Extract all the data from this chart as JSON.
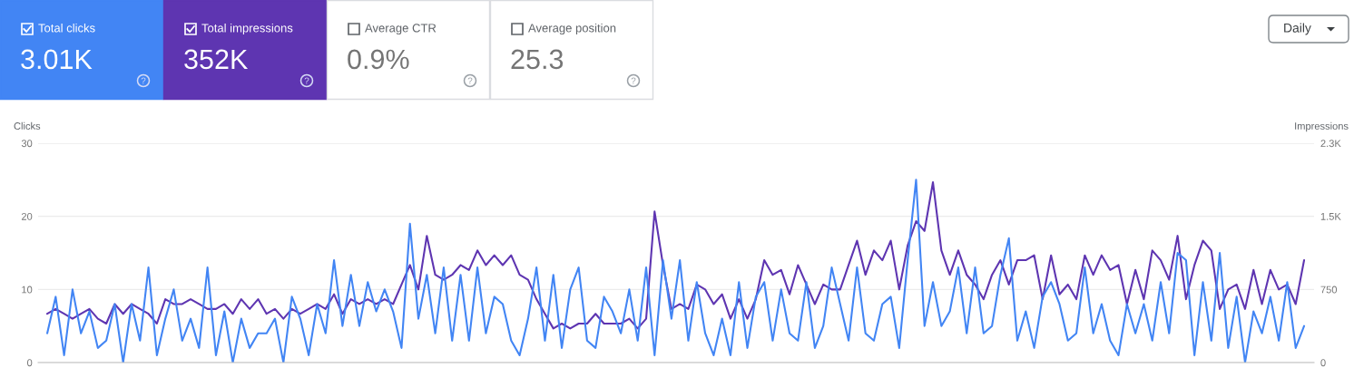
{
  "chart_data": [
    {
      "type": "other",
      "categories": [
        "Total clicks",
        "Total impressions",
        "Average CTR",
        "Average position"
      ],
      "value_labels": [
        "3.01K",
        "352K",
        "0.9%",
        "25.3"
      ],
      "colors": [
        "#4285f4",
        "#5e35b1",
        null,
        null
      ],
      "annotations": [
        "Daily"
      ]
    },
    {
      "type": "line",
      "categories": [
        null,
        null,
        null,
        null,
        null,
        null,
        null,
        null,
        null,
        null,
        null,
        null,
        null,
        null,
        null,
        null,
        null,
        null,
        null,
        null,
        null,
        null,
        null,
        null,
        null,
        null,
        null,
        null,
        null,
        null,
        null,
        null,
        null,
        null,
        null,
        null,
        null,
        null,
        null,
        null,
        null,
        null,
        null,
        null,
        null,
        null,
        null,
        null,
        null,
        null,
        null,
        null,
        null,
        null,
        null,
        null,
        null,
        null,
        null,
        null,
        null,
        null,
        null,
        null,
        null,
        null,
        null,
        null,
        null,
        null,
        null,
        null,
        null,
        null,
        null,
        null,
        null,
        null,
        null,
        null,
        null,
        null,
        null,
        null,
        null,
        null,
        null,
        null,
        null,
        null,
        null,
        null,
        null,
        null,
        null,
        null,
        null,
        null,
        null,
        null,
        null,
        null,
        null,
        null,
        null,
        null,
        null,
        null,
        null,
        null,
        null,
        null,
        null,
        null,
        null,
        null,
        null,
        null,
        null,
        null,
        null,
        null,
        null,
        null,
        null,
        null,
        null,
        null,
        null,
        null,
        null,
        null,
        null,
        null,
        null,
        null,
        null,
        null,
        null,
        null,
        null,
        null,
        null,
        null,
        null,
        null,
        null,
        null,
        null,
        null
      ],
      "ylabel": "Clicks",
      "y2label": "Impressions",
      "ylim": [
        0,
        30
      ],
      "yticks": [
        0,
        10,
        20,
        30
      ],
      "y2lim": [
        0,
        2250
      ],
      "y2ticks": [
        0,
        750,
        {
          "value": 1500,
          "label": "1.5K"
        },
        {
          "value": 2250,
          "label": "2.3K"
        }
      ],
      "grid": "y",
      "series": [
        {
          "color": "#5e35b1",
          "axis": "y2",
          "values": [
            500,
            550,
            500,
            450,
            500,
            550,
            450,
            400,
            600,
            500,
            600,
            550,
            500,
            400,
            650,
            600,
            600,
            650,
            600,
            550,
            550,
            600,
            500,
            650,
            550,
            650,
            500,
            550,
            450,
            550,
            500,
            550,
            600,
            550,
            700,
            500,
            650,
            600,
            650,
            600,
            650,
            600,
            800,
            1000,
            750,
            1300,
            900,
            850,
            900,
            1000,
            950,
            1150,
            1000,
            1100,
            1000,
            1100,
            900,
            850,
            650,
            500,
            350,
            400,
            350,
            400,
            400,
            500,
            400,
            400,
            400,
            450,
            350,
            450,
            1550,
            1000,
            550,
            600,
            550,
            800,
            750,
            600,
            700,
            450,
            650,
            450,
            650,
            1050,
            900,
            950,
            700,
            1000,
            800,
            600,
            800,
            750,
            750,
            1000,
            1250,
            900,
            1150,
            1050,
            1250,
            750,
            1200,
            1450,
            1350,
            1850,
            1150,
            900,
            1150,
            900,
            800,
            650,
            900,
            1050,
            800,
            1050,
            1050,
            1100,
            650,
            1100,
            700,
            800,
            650,
            1100,
            900,
            1100,
            950,
            1000,
            600,
            950,
            650,
            1150,
            1050,
            850,
            1300,
            650,
            1000,
            1250,
            1150,
            550,
            750,
            800,
            550,
            950,
            600,
            950,
            750,
            800,
            600,
            1050
          ]
        },
        {
          "color": "#4285f4",
          "values": [
            4,
            9,
            1,
            10,
            4,
            7,
            2,
            3,
            8,
            0,
            8,
            3,
            13,
            1,
            6,
            10,
            3,
            6,
            2,
            13,
            1,
            7,
            0,
            6,
            2,
            4,
            4,
            6,
            0,
            9,
            6,
            1,
            8,
            4,
            14,
            5,
            12,
            5,
            11,
            7,
            10,
            7,
            2,
            19,
            6,
            12,
            4,
            13,
            3,
            12,
            3,
            13,
            4,
            9,
            8,
            3,
            1,
            6,
            13,
            3,
            12,
            2,
            10,
            13,
            3,
            2,
            9,
            7,
            4,
            10,
            3,
            13,
            1,
            14,
            6,
            14,
            3,
            11,
            4,
            1,
            6,
            1,
            11,
            2,
            9,
            11,
            3,
            10,
            4,
            3,
            11,
            2,
            5,
            13,
            8,
            3,
            13,
            4,
            3,
            8,
            9,
            2,
            14,
            25,
            5,
            11,
            5,
            7,
            13,
            4,
            13,
            4,
            5,
            12,
            17,
            3,
            7,
            2,
            9,
            11,
            8,
            3,
            4,
            13,
            4,
            8,
            3,
            1,
            8,
            4,
            8,
            3,
            11,
            4,
            15,
            14,
            1,
            11,
            3,
            15,
            2,
            9,
            0,
            7,
            4,
            9,
            3,
            11,
            2,
            5
          ]
        }
      ]
    }
  ]
}
